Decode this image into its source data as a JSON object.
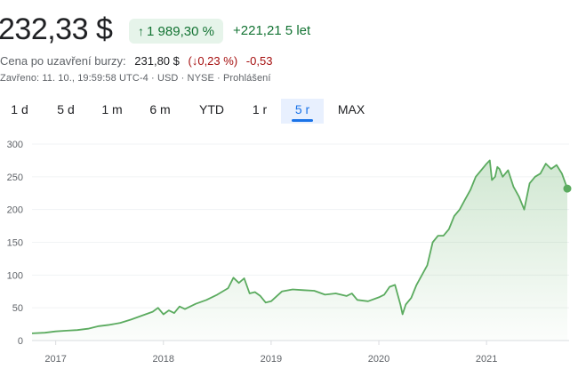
{
  "header": {
    "price": "232,33 $",
    "change_percent": "1 989,30 %",
    "change_arrow": "↑",
    "change_abs_period": "+221,21 5 let"
  },
  "close_info": {
    "label": "Cena po uzavření burzy:",
    "value": "231,80 $",
    "arrow": "↓",
    "percent_open": "(",
    "percent": "0,23 %",
    "percent_close": ")",
    "abs": "-0,53"
  },
  "meta_line": "Zavřeno: 11. 10., 19:59:58 UTC-4 · USD · NYSE · Prohlášení",
  "tabs": [
    "1 d",
    "5 d",
    "1 m",
    "6 m",
    "YTD",
    "1 r",
    "5 r",
    "MAX"
  ],
  "active_tab": "5 r",
  "colors": {
    "line": "#5bab5f",
    "positive": "#137333",
    "negative": "#a50e0e",
    "active_tab": "#1a73e8"
  },
  "chart_data": {
    "type": "area",
    "yticks": [
      "0",
      "50",
      "100",
      "150",
      "200",
      "250",
      "300"
    ],
    "xticks": [
      "2017",
      "2018",
      "2019",
      "2020",
      "2021"
    ],
    "ylim": [
      0,
      300
    ],
    "grid": true,
    "series": [
      {
        "x": [
          2016.78,
          2016.9,
          2017.0,
          2017.1,
          2017.2,
          2017.3,
          2017.4,
          2017.5,
          2017.6,
          2017.7,
          2017.8,
          2017.9,
          2017.95,
          2018.0,
          2018.05,
          2018.1,
          2018.15,
          2018.2,
          2018.3,
          2018.4,
          2018.5,
          2018.6,
          2018.65,
          2018.7,
          2018.75,
          2018.8,
          2018.85,
          2018.9,
          2018.95,
          2019.0,
          2019.1,
          2019.2,
          2019.3,
          2019.4,
          2019.5,
          2019.6,
          2019.7,
          2019.75,
          2019.8,
          2019.9,
          2020.0,
          2020.05,
          2020.1,
          2020.15,
          2020.2,
          2020.22,
          2020.25,
          2020.3,
          2020.35,
          2020.4,
          2020.45,
          2020.5,
          2020.55,
          2020.6,
          2020.65,
          2020.7,
          2020.75,
          2020.8,
          2020.85,
          2020.9,
          2020.95,
          2021.0,
          2021.03,
          2021.05,
          2021.08,
          2021.1,
          2021.12,
          2021.15,
          2021.2,
          2021.25,
          2021.3,
          2021.35,
          2021.4,
          2021.45,
          2021.5,
          2021.55,
          2021.6,
          2021.65,
          2021.7,
          2021.75
        ],
        "y": [
          11,
          12,
          14,
          15,
          16,
          18,
          22,
          24,
          27,
          32,
          38,
          44,
          50,
          40,
          46,
          42,
          52,
          48,
          56,
          62,
          70,
          80,
          96,
          88,
          95,
          72,
          74,
          68,
          58,
          60,
          75,
          78,
          77,
          76,
          70,
          72,
          68,
          72,
          62,
          60,
          66,
          70,
          82,
          85,
          55,
          40,
          55,
          65,
          85,
          100,
          115,
          150,
          160,
          160,
          170,
          190,
          200,
          215,
          230,
          250,
          260,
          270,
          275,
          245,
          250,
          265,
          262,
          250,
          260,
          235,
          220,
          200,
          240,
          250,
          255,
          270,
          262,
          268,
          255,
          232
        ]
      }
    ]
  }
}
